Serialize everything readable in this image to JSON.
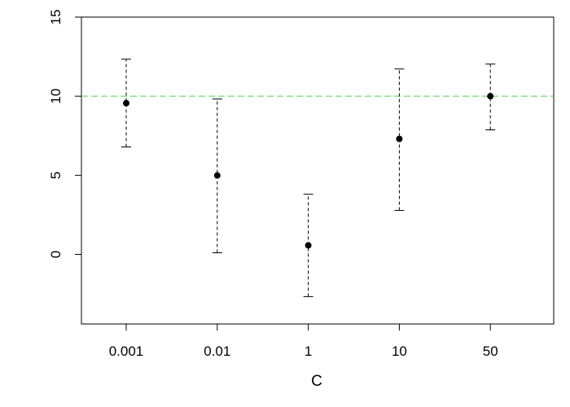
{
  "chart_data": {
    "type": "errorbar",
    "x_label": "C",
    "categories": [
      "0.001",
      "0.01",
      "1",
      "10",
      "50"
    ],
    "values": [
      9.56,
      4.99,
      0.57,
      7.3,
      10.0
    ],
    "lower": [
      6.79,
      0.1,
      -2.67,
      2.78,
      7.87
    ],
    "upper": [
      12.34,
      9.82,
      3.8,
      11.72,
      12.03
    ],
    "color": "#000000",
    "ylim": [
      -4.4,
      15
    ],
    "yticks": [
      0,
      5,
      10,
      15
    ],
    "reference_line": {
      "value": 10,
      "color": "#4cd24c"
    }
  }
}
